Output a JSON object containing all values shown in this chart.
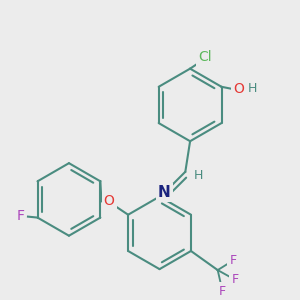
{
  "background_color": "#ececec",
  "atom_colors": {
    "C": "#4a8c80",
    "Cl": "#5cb85c",
    "O": "#e53935",
    "N": "#1a237e",
    "F": "#ab47bc",
    "H": "#4a8c80"
  },
  "bond_color": "#4a8c80",
  "bond_width": 1.5,
  "dbo": 0.06,
  "font_size": 9,
  "fig_size": [
    3.0,
    3.0
  ],
  "dpi": 100
}
